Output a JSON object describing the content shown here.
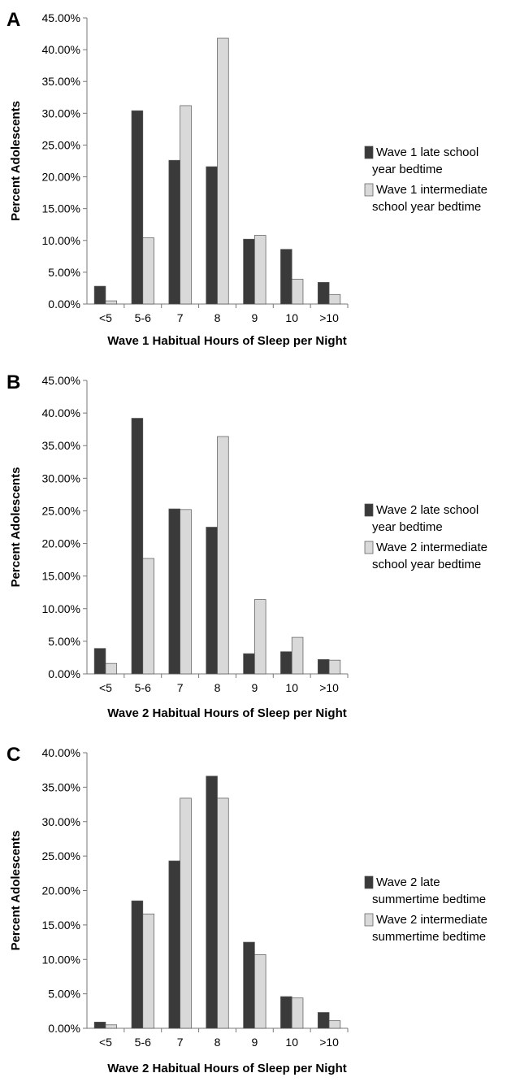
{
  "colors": {
    "late": "#3a3a3a",
    "intermediate": "#d9d9d9",
    "stroke": "#555555",
    "axis": "#777777"
  },
  "chart_data": [
    {
      "type": "bar",
      "panel_label": "A",
      "categories": [
        "<5",
        "5-6",
        "7",
        "8",
        "9",
        "10",
        ">10"
      ],
      "series": [
        {
          "name": "Wave 1 late school year bedtime",
          "legend_lines": [
            "Wave 1 late school",
            "year bedtime"
          ],
          "values": [
            2.8,
            30.4,
            22.6,
            21.6,
            10.2,
            8.6,
            3.4
          ]
        },
        {
          "name": "Wave 1 intermediate school year bedtime",
          "legend_lines": [
            "Wave 1 intermediate",
            "school year bedtime"
          ],
          "values": [
            0.5,
            10.4,
            31.2,
            41.8,
            10.8,
            3.9,
            1.5
          ]
        }
      ],
      "xlabel": "Wave 1 Habitual Hours of Sleep per Night",
      "ylabel": "Percent Adolescents",
      "ylim": [
        0,
        45
      ],
      "yticks": [
        "0.00%",
        "5.00%",
        "10.00%",
        "15.00%",
        "20.00%",
        "25.00%",
        "30.00%",
        "35.00%",
        "40.00%",
        "45.00%"
      ],
      "grid": false,
      "legend_position": "right"
    },
    {
      "type": "bar",
      "panel_label": "B",
      "categories": [
        "<5",
        "5-6",
        "7",
        "8",
        "9",
        "10",
        ">10"
      ],
      "series": [
        {
          "name": "Wave 2 late school year bedtime",
          "legend_lines": [
            "Wave 2 late school",
            "year bedtime"
          ],
          "values": [
            3.9,
            39.2,
            25.3,
            22.5,
            3.1,
            3.4,
            2.2
          ]
        },
        {
          "name": "Wave 2 intermediate school year bedtime",
          "legend_lines": [
            "Wave 2 intermediate",
            "school year bedtime"
          ],
          "values": [
            1.6,
            17.7,
            25.2,
            36.4,
            11.4,
            5.6,
            2.1
          ]
        }
      ],
      "xlabel": "Wave 2 Habitual Hours of Sleep per Night",
      "ylabel": "Percent Adolescents",
      "ylim": [
        0,
        45
      ],
      "yticks": [
        "0.00%",
        "5.00%",
        "10.00%",
        "15.00%",
        "20.00%",
        "25.00%",
        "30.00%",
        "35.00%",
        "40.00%",
        "45.00%"
      ],
      "grid": false,
      "legend_position": "right"
    },
    {
      "type": "bar",
      "panel_label": "C",
      "categories": [
        "<5",
        "5-6",
        "7",
        "8",
        "9",
        "10",
        ">10"
      ],
      "series": [
        {
          "name": "Wave 2 late summertime bedtime",
          "legend_lines": [
            "Wave 2 late",
            "summertime bedtime"
          ],
          "values": [
            0.9,
            18.5,
            24.3,
            36.6,
            12.5,
            4.6,
            2.3
          ]
        },
        {
          "name": "Wave 2 intermediate summertime bedtime",
          "legend_lines": [
            "Wave 2 intermediate",
            "summertime bedtime"
          ],
          "values": [
            0.5,
            16.6,
            33.4,
            33.4,
            10.7,
            4.4,
            1.1
          ]
        }
      ],
      "xlabel": "Wave 2 Habitual Hours of Sleep per Night",
      "ylabel": "Percent Adolescents",
      "ylim": [
        0,
        40
      ],
      "yticks": [
        "0.00%",
        "5.00%",
        "10.00%",
        "15.00%",
        "20.00%",
        "25.00%",
        "30.00%",
        "35.00%",
        "40.00%"
      ],
      "grid": false,
      "legend_position": "right"
    }
  ]
}
